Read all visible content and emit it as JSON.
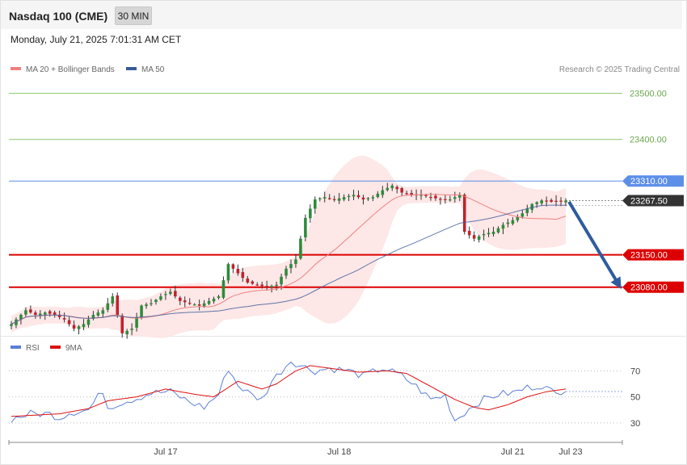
{
  "header": {
    "title": "Nasdaq 100 (CME)",
    "interval": "30 MIN"
  },
  "datetime": "Monday, July 21, 2025 7:01:31 AM CET",
  "legend": {
    "ma20": {
      "label": "MA 20 + Bollinger Bands",
      "color": "#f08080"
    },
    "ma50": {
      "label": "MA 50",
      "color": "#3a5a9a"
    }
  },
  "credit": "Research © 2025 Trading Central",
  "rsi_legend": {
    "rsi": {
      "label": "RSI",
      "color": "#5b7fd6"
    },
    "ma9": {
      "label": "9MA",
      "color": "#dd1111"
    }
  },
  "chart_data": {
    "type": "candlestick",
    "price_range": [
      22985,
      23515
    ],
    "levels": [
      {
        "value": 23500.0,
        "label": "23500.00",
        "kind": "target",
        "color": "#8cc66a"
      },
      {
        "value": 23400.0,
        "label": "23400.00",
        "kind": "target",
        "color": "#8cc66a"
      },
      {
        "value": 23310.0,
        "label": "23310.00",
        "kind": "resistance",
        "color": "#5d8fe8"
      },
      {
        "value": 23267.5,
        "label": "23267.50",
        "kind": "last",
        "color": "#333333"
      },
      {
        "value": 23150.0,
        "label": "23150.00",
        "kind": "support",
        "color": "#dd0000"
      },
      {
        "value": 23080.0,
        "label": "23080.00",
        "kind": "support",
        "color": "#dd0000"
      }
    ],
    "x_labels": [
      {
        "label": "Jul 17",
        "index": 32
      },
      {
        "label": "Jul 18",
        "index": 68
      },
      {
        "label": "Jul 21",
        "index": 104
      },
      {
        "label": "Jul 23",
        "index": 116
      }
    ],
    "arrow": {
      "from_index": 115,
      "from_value": 23265,
      "to_index": 125,
      "to_value": 23085,
      "color": "#2e5c9e"
    },
    "rsi_levels": [
      70,
      50,
      30
    ],
    "rsi_range": [
      20,
      82
    ],
    "candle_anchors": [
      [
        0,
        23000
      ],
      [
        3,
        23030
      ],
      [
        5,
        23020
      ],
      [
        7,
        23025
      ],
      [
        9,
        23020
      ],
      [
        11,
        23010
      ],
      [
        13,
        22990
      ],
      [
        15,
        23000
      ],
      [
        17,
        23020
      ],
      [
        19,
        23030
      ],
      [
        21,
        23060
      ],
      [
        23,
        22980
      ],
      [
        25,
        22990
      ],
      [
        27,
        23040
      ],
      [
        29,
        23045
      ],
      [
        31,
        23060
      ],
      [
        33,
        23070
      ],
      [
        35,
        23050
      ],
      [
        37,
        23045
      ],
      [
        39,
        23040
      ],
      [
        41,
        23050
      ],
      [
        43,
        23060
      ],
      [
        45,
        23130
      ],
      [
        47,
        23110
      ],
      [
        49,
        23090
      ],
      [
        51,
        23085
      ],
      [
        53,
        23080
      ],
      [
        55,
        23085
      ],
      [
        57,
        23120
      ],
      [
        59,
        23140
      ],
      [
        61,
        23230
      ],
      [
        63,
        23270
      ],
      [
        65,
        23275
      ],
      [
        67,
        23270
      ],
      [
        69,
        23275
      ],
      [
        71,
        23280
      ],
      [
        73,
        23270
      ],
      [
        75,
        23275
      ],
      [
        77,
        23290
      ],
      [
        79,
        23300
      ],
      [
        81,
        23285
      ],
      [
        83,
        23280
      ],
      [
        85,
        23280
      ],
      [
        87,
        23275
      ],
      [
        89,
        23270
      ],
      [
        91,
        23270
      ],
      [
        93,
        23280
      ],
      [
        94,
        23200
      ],
      [
        96,
        23185
      ],
      [
        98,
        23195
      ],
      [
        100,
        23200
      ],
      [
        102,
        23215
      ],
      [
        104,
        23225
      ],
      [
        106,
        23240
      ],
      [
        108,
        23260
      ],
      [
        110,
        23268
      ],
      [
        112,
        23265
      ],
      [
        115,
        23267.5
      ]
    ],
    "candle_count": 116,
    "rsi_anchors": [
      [
        0,
        33
      ],
      [
        4,
        37
      ],
      [
        8,
        37
      ],
      [
        10,
        34
      ],
      [
        12,
        38
      ],
      [
        16,
        40
      ],
      [
        18,
        50
      ],
      [
        19,
        55
      ],
      [
        20,
        42
      ],
      [
        23,
        46
      ],
      [
        26,
        49
      ],
      [
        29,
        53
      ],
      [
        33,
        54
      ],
      [
        37,
        46
      ],
      [
        40,
        42
      ],
      [
        43,
        52
      ],
      [
        45,
        72
      ],
      [
        47,
        59
      ],
      [
        50,
        51
      ],
      [
        52,
        48
      ],
      [
        54,
        62
      ],
      [
        56,
        70
      ],
      [
        58,
        78
      ],
      [
        60,
        74
      ],
      [
        63,
        70
      ],
      [
        66,
        72
      ],
      [
        70,
        70
      ],
      [
        73,
        66
      ],
      [
        77,
        72
      ],
      [
        81,
        66
      ],
      [
        84,
        58
      ],
      [
        87,
        48
      ],
      [
        90,
        51
      ],
      [
        92,
        32
      ],
      [
        94,
        38
      ],
      [
        96,
        44
      ],
      [
        98,
        48
      ],
      [
        101,
        52
      ],
      [
        104,
        53
      ],
      [
        107,
        57
      ],
      [
        110,
        59
      ],
      [
        113,
        52
      ],
      [
        115,
        57
      ]
    ],
    "ma9_anchors": [
      [
        0,
        35
      ],
      [
        10,
        37
      ],
      [
        16,
        41
      ],
      [
        20,
        47
      ],
      [
        26,
        50
      ],
      [
        32,
        56
      ],
      [
        38,
        52
      ],
      [
        42,
        50
      ],
      [
        47,
        62
      ],
      [
        52,
        56
      ],
      [
        55,
        60
      ],
      [
        59,
        70
      ],
      [
        62,
        74
      ],
      [
        66,
        72
      ],
      [
        72,
        69
      ],
      [
        78,
        70
      ],
      [
        82,
        68
      ],
      [
        88,
        56
      ],
      [
        92,
        48
      ],
      [
        96,
        42
      ],
      [
        99,
        40
      ],
      [
        103,
        44
      ],
      [
        107,
        50
      ],
      [
        111,
        54
      ],
      [
        115,
        56
      ]
    ]
  }
}
